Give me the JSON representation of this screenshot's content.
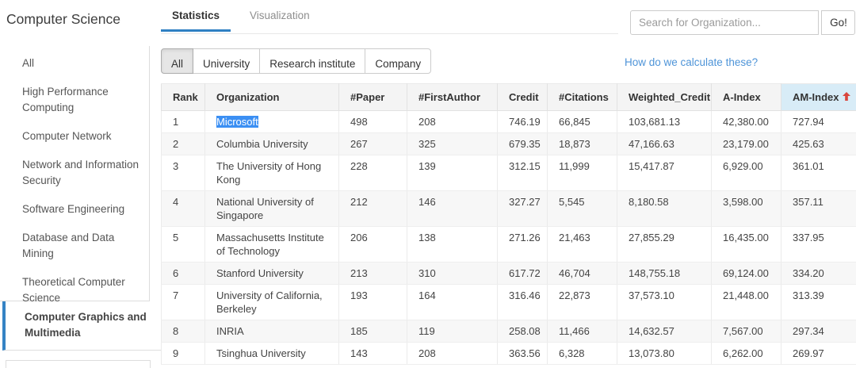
{
  "sidebar": {
    "title": "Computer Science",
    "items": [
      {
        "label": "All",
        "active": false
      },
      {
        "label": "High Performance Computing",
        "active": false
      },
      {
        "label": "Computer Network",
        "active": false
      },
      {
        "label": "Network and Information Security",
        "active": false
      },
      {
        "label": "Software Engineering",
        "active": false
      },
      {
        "label": "Database and Data Mining",
        "active": false
      },
      {
        "label": "Theoretical Computer Science",
        "active": false
      },
      {
        "label": "Computer Graphics and Multimedia",
        "active": true
      }
    ]
  },
  "tabs": [
    {
      "label": "Statistics",
      "active": true
    },
    {
      "label": "Visualization",
      "active": false
    }
  ],
  "search": {
    "placeholder": "Search for Organization...",
    "button_label": "Go!"
  },
  "filters": [
    {
      "label": "All",
      "active": true
    },
    {
      "label": "University",
      "active": false
    },
    {
      "label": "Research institute",
      "active": false
    },
    {
      "label": "Company",
      "active": false
    }
  ],
  "calc_link": "How do we calculate these?",
  "table": {
    "headers": [
      "Rank",
      "Organization",
      "#Paper",
      "#FirstAuthor",
      "Credit",
      "#Citations",
      "Weighted_Credit",
      "A-Index",
      "AM-Index"
    ],
    "sort": {
      "column": "AM-Index",
      "direction": "up",
      "icon": "red-up-arrow"
    },
    "rows": [
      {
        "rank": "1",
        "organization": "Microsoft",
        "selected": true,
        "paper": "498",
        "first_author": "208",
        "credit": "746.19",
        "citations": "66,845",
        "weighted_credit": "103,681.13",
        "a_index": "42,380.00",
        "am_index": "727.94"
      },
      {
        "rank": "2",
        "organization": "Columbia University",
        "selected": false,
        "paper": "267",
        "first_author": "325",
        "credit": "679.35",
        "citations": "18,873",
        "weighted_credit": "47,166.63",
        "a_index": "23,179.00",
        "am_index": "425.63"
      },
      {
        "rank": "3",
        "organization": "The University of Hong Kong",
        "selected": false,
        "paper": "228",
        "first_author": "139",
        "credit": "312.15",
        "citations": "11,999",
        "weighted_credit": "15,417.87",
        "a_index": "6,929.00",
        "am_index": "361.01"
      },
      {
        "rank": "4",
        "organization": "National University of Singapore",
        "selected": false,
        "paper": "212",
        "first_author": "146",
        "credit": "327.27",
        "citations": "5,545",
        "weighted_credit": "8,180.58",
        "a_index": "3,598.00",
        "am_index": "357.11"
      },
      {
        "rank": "5",
        "organization": "Massachusetts Institute of Technology",
        "selected": false,
        "paper": "206",
        "first_author": "138",
        "credit": "271.26",
        "citations": "21,463",
        "weighted_credit": "27,855.29",
        "a_index": "16,435.00",
        "am_index": "337.95"
      },
      {
        "rank": "6",
        "organization": "Stanford University",
        "selected": false,
        "paper": "213",
        "first_author": "310",
        "credit": "617.72",
        "citations": "46,704",
        "weighted_credit": "148,755.18",
        "a_index": "69,124.00",
        "am_index": "334.20"
      },
      {
        "rank": "7",
        "organization": "University of California, Berkeley",
        "selected": false,
        "paper": "193",
        "first_author": "164",
        "credit": "316.46",
        "citations": "22,873",
        "weighted_credit": "37,573.10",
        "a_index": "21,448.00",
        "am_index": "313.39"
      },
      {
        "rank": "8",
        "organization": "INRIA",
        "selected": false,
        "paper": "185",
        "first_author": "119",
        "credit": "258.08",
        "citations": "11,466",
        "weighted_credit": "14,632.57",
        "a_index": "7,567.00",
        "am_index": "297.34"
      },
      {
        "rank": "9",
        "organization": "Tsinghua University",
        "selected": false,
        "paper": "143",
        "first_author": "208",
        "credit": "363.56",
        "citations": "6,328",
        "weighted_credit": "13,073.80",
        "a_index": "6,262.00",
        "am_index": "269.97"
      }
    ]
  },
  "colors": {
    "accent_blue": "#2f80c3",
    "sidebar_accent": "#3583c4",
    "link_blue": "#4e94d8",
    "selection_blue": "#3b8ff3",
    "sort_arrow_red": "#d9453c",
    "am_header_bg": "#d8ecf7",
    "header_bg": "#f4f4f4",
    "row_alt_bg": "#f7f7f7",
    "border": "#dddddd"
  }
}
